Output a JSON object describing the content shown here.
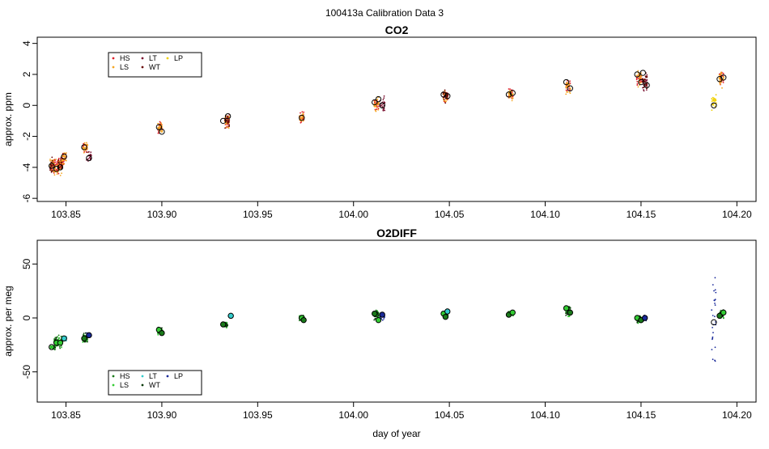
{
  "figure": {
    "title": "100413a   Calibration Data 3"
  },
  "chart_data": [
    {
      "type": "scatter",
      "title": "CO2",
      "xlabel": "",
      "ylabel": "approx. ppm",
      "xlim": [
        103.835,
        104.21
      ],
      "ylim": [
        -6.2,
        4.4
      ],
      "xticks": [
        103.85,
        103.9,
        103.95,
        104.0,
        104.05,
        104.1,
        104.15,
        104.2
      ],
      "xtick_labels": [
        "103.85",
        "103.90",
        "103.95",
        "104.00",
        "104.05",
        "104.10",
        "104.15",
        "104.20"
      ],
      "yticks": [
        -6,
        -4,
        -2,
        0,
        2,
        4
      ],
      "ytick_labels": [
        "-6",
        "-4",
        "-2",
        "0",
        "2",
        "4"
      ],
      "grid": false,
      "legend": {
        "placement": "top-left",
        "entries": [
          {
            "label": "HS",
            "color": "#e0202a"
          },
          {
            "label": "LS",
            "color": "#f5a623"
          },
          {
            "label": "LT",
            "color": "#7a1030"
          },
          {
            "label": "WT",
            "color": "#6a0a0a"
          },
          {
            "label": "LP",
            "color": "#f0d000"
          }
        ]
      },
      "clusters": [
        {
          "x": 103.843,
          "center": -3.9,
          "spread": 1.0,
          "series": [
            "HS",
            "LS",
            "WT"
          ]
        },
        {
          "x": 103.845,
          "center": -4.0,
          "spread": 1.0,
          "series": [
            "HS",
            "LS"
          ]
        },
        {
          "x": 103.847,
          "center": -3.8,
          "spread": 1.0,
          "series": [
            "HS",
            "LS",
            "WT"
          ]
        },
        {
          "x": 103.849,
          "center": -3.4,
          "spread": 0.9,
          "series": [
            "HS",
            "LS"
          ]
        },
        {
          "x": 103.86,
          "center": -2.7,
          "spread": 0.8,
          "series": [
            "HS",
            "LS"
          ]
        },
        {
          "x": 103.862,
          "center": -3.3,
          "spread": 0.8,
          "series": [
            "LT"
          ]
        },
        {
          "x": 103.899,
          "center": -1.5,
          "spread": 0.8,
          "series": [
            "HS",
            "LS"
          ]
        },
        {
          "x": 103.934,
          "center": -1.0,
          "spread": 0.9,
          "series": [
            "HS",
            "LS",
            "WT"
          ]
        },
        {
          "x": 103.973,
          "center": -0.8,
          "spread": 0.7,
          "series": [
            "HS",
            "LS"
          ]
        },
        {
          "x": 104.012,
          "center": 0.1,
          "spread": 0.8,
          "series": [
            "HS",
            "LS"
          ]
        },
        {
          "x": 104.015,
          "center": 0.1,
          "spread": 0.8,
          "series": [
            "LT"
          ]
        },
        {
          "x": 104.048,
          "center": 0.6,
          "spread": 0.8,
          "series": [
            "HS",
            "LS",
            "WT"
          ]
        },
        {
          "x": 104.082,
          "center": 0.7,
          "spread": 0.8,
          "series": [
            "HS",
            "LS"
          ]
        },
        {
          "x": 104.112,
          "center": 1.2,
          "spread": 0.9,
          "series": [
            "HS",
            "LS"
          ]
        },
        {
          "x": 104.149,
          "center": 1.8,
          "spread": 1.0,
          "series": [
            "HS",
            "LS"
          ]
        },
        {
          "x": 104.152,
          "center": 1.5,
          "spread": 1.1,
          "series": [
            "LT",
            "WT"
          ]
        },
        {
          "x": 104.188,
          "center": 0.3,
          "spread": 1.0,
          "series": [
            "LP"
          ]
        },
        {
          "x": 104.192,
          "center": 1.8,
          "spread": 0.9,
          "series": [
            "HS",
            "LS"
          ]
        }
      ],
      "means": [
        {
          "x": 103.8425,
          "y": -3.9
        },
        {
          "x": 103.845,
          "y": -4.1
        },
        {
          "x": 103.847,
          "y": -4.0
        },
        {
          "x": 103.849,
          "y": -3.3
        },
        {
          "x": 103.8595,
          "y": -2.7
        },
        {
          "x": 103.862,
          "y": -3.4
        },
        {
          "x": 103.8985,
          "y": -1.4
        },
        {
          "x": 103.9,
          "y": -1.7
        },
        {
          "x": 103.932,
          "y": -1.0
        },
        {
          "x": 103.9345,
          "y": -0.7
        },
        {
          "x": 103.973,
          "y": -0.8
        },
        {
          "x": 104.011,
          "y": 0.2
        },
        {
          "x": 104.013,
          "y": 0.4
        },
        {
          "x": 104.015,
          "y": 0.0
        },
        {
          "x": 104.047,
          "y": 0.7
        },
        {
          "x": 104.049,
          "y": 0.6
        },
        {
          "x": 104.081,
          "y": 0.7
        },
        {
          "x": 104.083,
          "y": 0.8
        },
        {
          "x": 104.111,
          "y": 1.5
        },
        {
          "x": 104.113,
          "y": 1.1
        },
        {
          "x": 104.148,
          "y": 2.0
        },
        {
          "x": 104.15,
          "y": 1.5
        },
        {
          "x": 104.151,
          "y": 2.1
        },
        {
          "x": 104.153,
          "y": 1.3
        },
        {
          "x": 104.188,
          "y": 0.0
        },
        {
          "x": 104.191,
          "y": 1.7
        },
        {
          "x": 104.193,
          "y": 1.8
        }
      ]
    },
    {
      "type": "scatter",
      "title": "O2DIFF",
      "xlabel": "day of year",
      "ylabel": "approx. per meg",
      "xlim": [
        103.835,
        104.21
      ],
      "ylim": [
        -78,
        72
      ],
      "xticks": [
        103.85,
        103.9,
        103.95,
        104.0,
        104.05,
        104.1,
        104.15,
        104.2
      ],
      "xtick_labels": [
        "103.85",
        "103.90",
        "103.95",
        "104.00",
        "104.05",
        "104.10",
        "104.15",
        "104.20"
      ],
      "yticks": [
        -50,
        0,
        50
      ],
      "ytick_labels": [
        "-50",
        "0",
        "50"
      ],
      "grid": false,
      "legend": {
        "placement": "bottom-left",
        "entries": [
          {
            "label": "HS",
            "color": "#1a7a1a"
          },
          {
            "label": "LS",
            "color": "#33cc33"
          },
          {
            "label": "LT",
            "color": "#33cccc"
          },
          {
            "label": "WT",
            "color": "#0a3a0a"
          },
          {
            "label": "LP",
            "color": "#1a2a9a"
          }
        ]
      },
      "clusters": [
        {
          "x": 103.843,
          "center": -27,
          "spread": 3,
          "series": [
            "HS",
            "LS"
          ]
        },
        {
          "x": 103.845,
          "center": -23,
          "spread": 10,
          "series": [
            "HS",
            "LS",
            "WT"
          ]
        },
        {
          "x": 103.847,
          "center": -22,
          "spread": 10,
          "series": [
            "HS",
            "LS"
          ]
        },
        {
          "x": 103.849,
          "center": -19,
          "spread": 5,
          "series": [
            "LT"
          ]
        },
        {
          "x": 103.86,
          "center": -19,
          "spread": 9,
          "series": [
            "HS",
            "LS",
            "WT"
          ]
        },
        {
          "x": 103.862,
          "center": -16,
          "spread": 4,
          "series": [
            "LP"
          ]
        },
        {
          "x": 103.899,
          "center": -12,
          "spread": 7,
          "series": [
            "HS",
            "LS",
            "WT"
          ]
        },
        {
          "x": 103.933,
          "center": -6,
          "spread": 5,
          "series": [
            "HS",
            "LS",
            "WT"
          ]
        },
        {
          "x": 103.936,
          "center": 2,
          "spread": 3,
          "series": [
            "LT"
          ]
        },
        {
          "x": 103.973,
          "center": 0,
          "spread": 5,
          "series": [
            "HS",
            "LS",
            "WT"
          ]
        },
        {
          "x": 104.012,
          "center": 3,
          "spread": 8,
          "series": [
            "HS",
            "LS",
            "WT"
          ]
        },
        {
          "x": 104.015,
          "center": 2,
          "spread": 8,
          "series": [
            "LP"
          ]
        },
        {
          "x": 104.048,
          "center": 3,
          "spread": 6,
          "series": [
            "HS",
            "LS",
            "WT"
          ]
        },
        {
          "x": 104.082,
          "center": 4,
          "spread": 4,
          "series": [
            "HS",
            "LS",
            "WT"
          ]
        },
        {
          "x": 104.112,
          "center": 6,
          "spread": 9,
          "series": [
            "HS",
            "LS",
            "WT"
          ]
        },
        {
          "x": 104.149,
          "center": -1,
          "spread": 7,
          "series": [
            "HS",
            "LS",
            "WT"
          ]
        },
        {
          "x": 104.152,
          "center": 0,
          "spread": 6,
          "series": [
            "LP"
          ]
        },
        {
          "x": 104.188,
          "center": -5,
          "spread": 70,
          "series": [
            "LP"
          ]
        },
        {
          "x": 104.192,
          "center": 4,
          "spread": 8,
          "series": [
            "HS",
            "LS",
            "WT"
          ]
        }
      ],
      "means": [
        {
          "x": 103.8425,
          "y": -27,
          "fill": "none"
        },
        {
          "x": 103.845,
          "y": -23,
          "fill": "#33cc33"
        },
        {
          "x": 103.847,
          "y": -23,
          "fill": "#33cc33"
        },
        {
          "x": 103.849,
          "y": -19,
          "fill": "#33cccc"
        },
        {
          "x": 103.8595,
          "y": -19,
          "fill": "#1a7a1a"
        },
        {
          "x": 103.862,
          "y": -16,
          "fill": "#1a2a9a"
        },
        {
          "x": 103.8985,
          "y": -11,
          "fill": "#33cc33"
        },
        {
          "x": 103.9,
          "y": -14,
          "fill": "#1a7a1a"
        },
        {
          "x": 103.932,
          "y": -6,
          "fill": "#1a7a1a"
        },
        {
          "x": 103.936,
          "y": 2,
          "fill": "#33cccc"
        },
        {
          "x": 103.973,
          "y": 0,
          "fill": "#33cc33"
        },
        {
          "x": 103.974,
          "y": -2,
          "fill": "#1a7a1a"
        },
        {
          "x": 104.011,
          "y": 4,
          "fill": "#1a7a1a"
        },
        {
          "x": 104.013,
          "y": -2,
          "fill": "#33cc33"
        },
        {
          "x": 104.015,
          "y": 3,
          "fill": "#1a2a9a"
        },
        {
          "x": 104.047,
          "y": 4,
          "fill": "#33cc33"
        },
        {
          "x": 104.049,
          "y": 6,
          "fill": "#33cccc"
        },
        {
          "x": 104.048,
          "y": 1,
          "fill": "#1a7a1a"
        },
        {
          "x": 104.081,
          "y": 3,
          "fill": "#1a7a1a"
        },
        {
          "x": 104.083,
          "y": 5,
          "fill": "#33cc33"
        },
        {
          "x": 104.111,
          "y": 9,
          "fill": "#33cc33"
        },
        {
          "x": 104.113,
          "y": 5,
          "fill": "#1a7a1a"
        },
        {
          "x": 104.148,
          "y": 0,
          "fill": "#33cc33"
        },
        {
          "x": 104.15,
          "y": -2,
          "fill": "#1a7a1a"
        },
        {
          "x": 104.152,
          "y": 0,
          "fill": "#1a2a9a"
        },
        {
          "x": 104.188,
          "y": -4,
          "fill": "none"
        },
        {
          "x": 104.191,
          "y": 2,
          "fill": "#1a7a1a"
        },
        {
          "x": 104.193,
          "y": 5,
          "fill": "#33cc33"
        }
      ]
    }
  ]
}
